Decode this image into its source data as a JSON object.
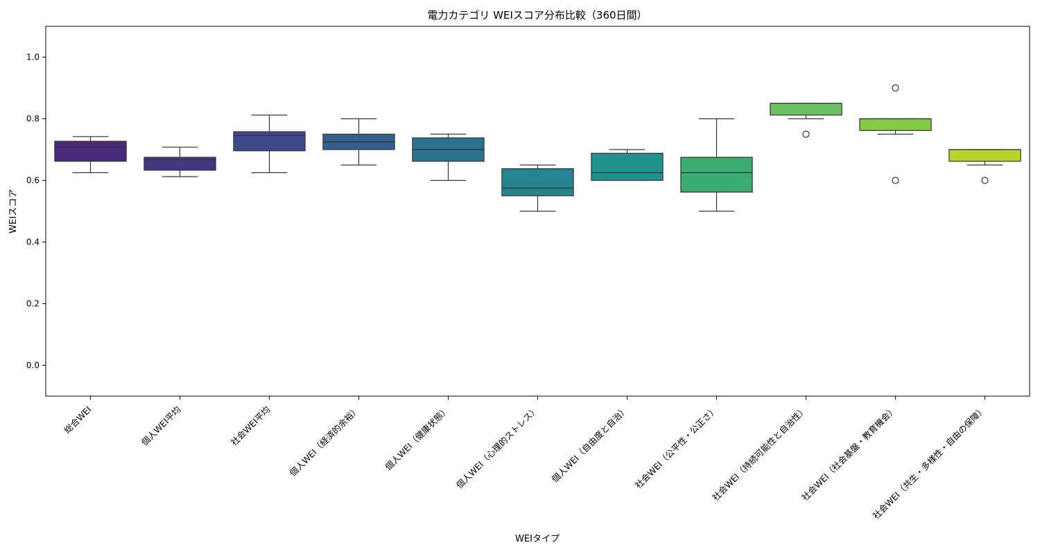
{
  "chart_data": {
    "type": "box",
    "title": "電力カテゴリ WEIスコア分布比較（360日間）",
    "xlabel": "WEIタイプ",
    "ylabel": "WEIスコア",
    "ylim": [
      -0.1,
      1.1
    ],
    "yticks": [
      "0.0",
      "0.2",
      "0.4",
      "0.6",
      "0.8",
      "1.0"
    ],
    "grid": false,
    "categories": [
      "総合WEI",
      "個人WEI平均",
      "社会WEI平均",
      "個人WEI（経済的余裕）",
      "個人WEI（健康状態）",
      "個人WEI（心理的ストレス）",
      "個人WEI（自由度と自治）",
      "社会WEI（公平性・公正さ）",
      "社会WEI（持続可能性と自治性）",
      "社会WEI（社会基盤・教育機会）",
      "社会WEI（共生・多様性・自由の保障）"
    ],
    "boxes": [
      {
        "whisker_low": 0.625,
        "q1": 0.662,
        "median": 0.708,
        "q3": 0.727,
        "whisker_high": 0.742,
        "outliers": [],
        "color": "#472a7a"
      },
      {
        "whisker_low": 0.612,
        "q1": 0.633,
        "median": 0.667,
        "q3": 0.675,
        "whisker_high": 0.708,
        "outliers": [],
        "color": "#453882"
      },
      {
        "whisker_low": 0.625,
        "q1": 0.696,
        "median": 0.746,
        "q3": 0.758,
        "whisker_high": 0.812,
        "outliers": [],
        "color": "#3e4a89"
      },
      {
        "whisker_low": 0.65,
        "q1": 0.7,
        "median": 0.725,
        "q3": 0.75,
        "whisker_high": 0.8,
        "outliers": [],
        "color": "#355f8d"
      },
      {
        "whisker_low": 0.6,
        "q1": 0.662,
        "median": 0.7,
        "q3": 0.738,
        "whisker_high": 0.75,
        "outliers": [],
        "color": "#2c728e"
      },
      {
        "whisker_low": 0.5,
        "q1": 0.55,
        "median": 0.575,
        "q3": 0.638,
        "whisker_high": 0.65,
        "outliers": [],
        "color": "#26848e"
      },
      {
        "whisker_low": 0.6,
        "q1": 0.6,
        "median": 0.625,
        "q3": 0.688,
        "whisker_high": 0.7,
        "outliers": [],
        "color": "#21918c"
      },
      {
        "whisker_low": 0.5,
        "q1": 0.562,
        "median": 0.625,
        "q3": 0.675,
        "whisker_high": 0.8,
        "outliers": [],
        "color": "#3bab72"
      },
      {
        "whisker_low": 0.8,
        "q1": 0.812,
        "median": 0.85,
        "q3": 0.85,
        "whisker_high": 0.85,
        "outliers": [
          0.75
        ],
        "color": "#6cc164"
      },
      {
        "whisker_low": 0.75,
        "q1": 0.762,
        "median": 0.8,
        "q3": 0.8,
        "whisker_high": 0.8,
        "outliers": [
          0.9,
          0.6
        ],
        "color": "#86cb46"
      },
      {
        "whisker_low": 0.65,
        "q1": 0.662,
        "median": 0.7,
        "q3": 0.7,
        "whisker_high": 0.7,
        "outliers": [
          0.6
        ],
        "color": "#b8d52c"
      }
    ]
  }
}
